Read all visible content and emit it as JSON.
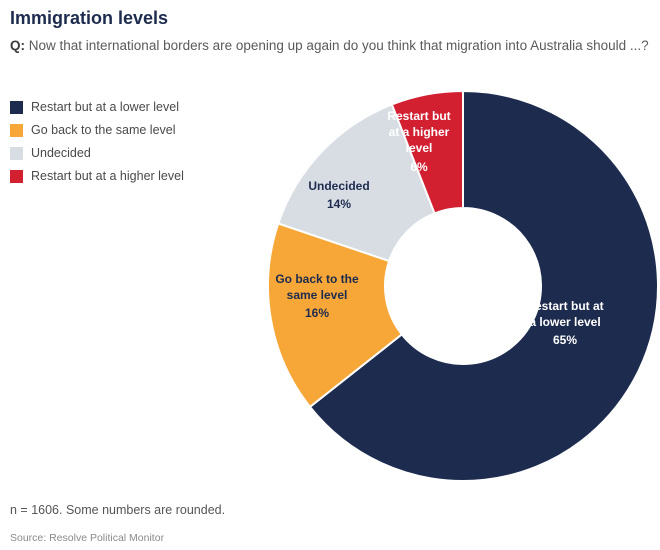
{
  "header": {
    "title": "Immigration levels"
  },
  "question": {
    "prefix": "Q:",
    "text": " Now that international borders are opening up again do you think that migration into Australia should ...?"
  },
  "footer": {
    "n_note": "n = 1606. Some numbers are rounded.",
    "source": "Source: Resolve Political Monitor"
  },
  "chart_data": {
    "type": "pie",
    "subtype": "donut",
    "title": "Immigration levels",
    "categories": [
      "Restart but at a lower level",
      "Go back to the same level",
      "Undecided",
      "Restart but at a higher level"
    ],
    "values": [
      65,
      16,
      14,
      6
    ],
    "unit": "%",
    "pct_labels": [
      "65%",
      "16%",
      "14%",
      "6%"
    ],
    "colors": [
      "#1d2b4e",
      "#f7a738",
      "#d8dce3",
      "#d22031"
    ],
    "start_angle_deg": 0,
    "direction": "clockwise",
    "legend_position": "left",
    "sample_note": "n = 1606. Some numbers are rounded.",
    "source": "Source: Resolve Political Monitor"
  }
}
